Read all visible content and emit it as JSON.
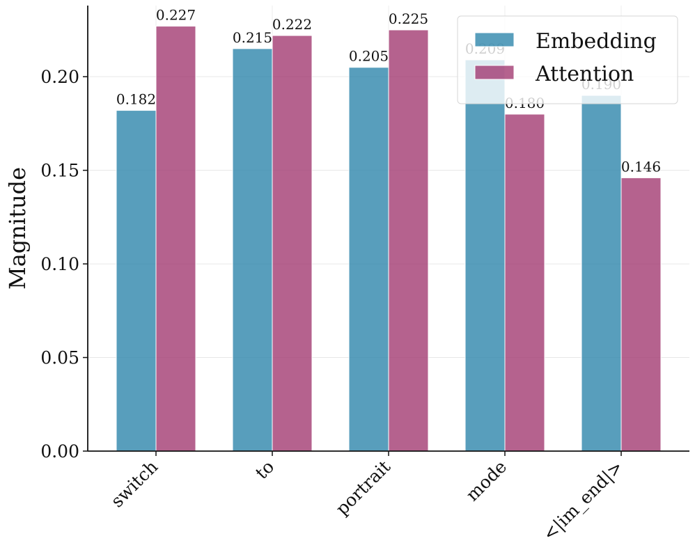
{
  "chart_data": {
    "type": "bar",
    "title": "",
    "xlabel": "",
    "ylabel": "Magnitude",
    "categories": [
      "switch",
      "to",
      "portrait",
      "mode",
      "<|im_end|>"
    ],
    "series": [
      {
        "name": "Embedding",
        "values": [
          0.182,
          0.215,
          0.205,
          0.209,
          0.19
        ],
        "color": "#2e86ab"
      },
      {
        "name": "Attention",
        "values": [
          0.227,
          0.222,
          0.225,
          0.18,
          0.146
        ],
        "color": "#a23b72"
      }
    ],
    "data_labels": [
      [
        "0.182",
        "0.215",
        "0.205",
        "0.209",
        "0.190"
      ],
      [
        "0.227",
        "0.222",
        "0.225",
        "0.180",
        "0.146"
      ]
    ],
    "ylim": [
      0,
      0.238
    ],
    "yticks": [
      0.0,
      0.05,
      0.1,
      0.15,
      0.2
    ],
    "ytick_labels": [
      "0.00",
      "0.05",
      "0.10",
      "0.15",
      "0.20"
    ],
    "grid": true,
    "legend_position": "top-right"
  }
}
